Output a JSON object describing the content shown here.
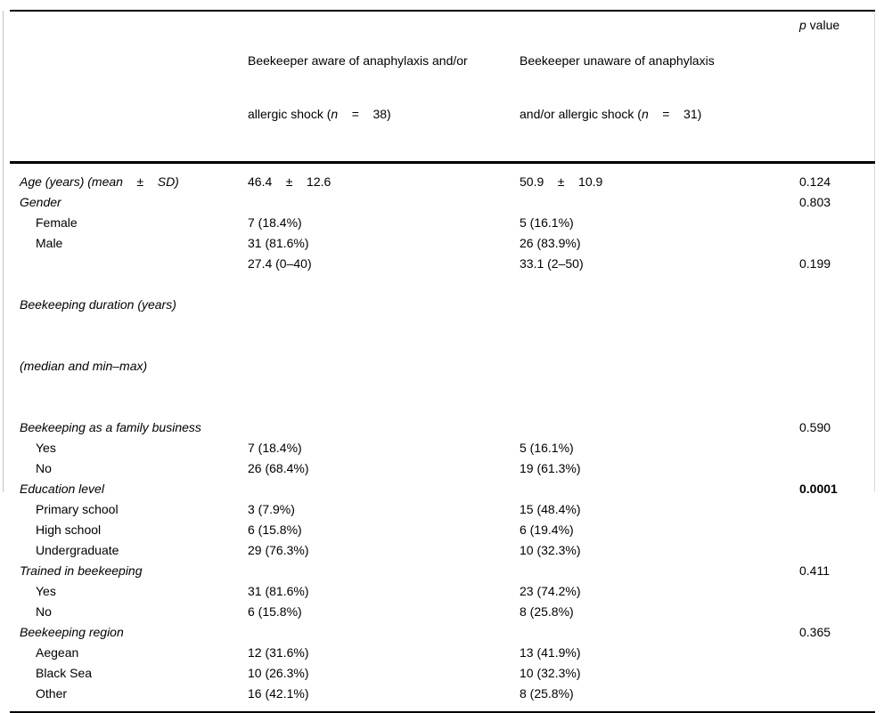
{
  "page": {
    "background": "#ffffff",
    "rule_color": "#000000",
    "frame_color": "#c4c4c4"
  },
  "table": {
    "header": {
      "label_column": "",
      "aware": {
        "line1": "Beekeeper aware of anaphylaxis and/or",
        "line2_pre": "allergic shock (",
        "n": "n",
        "line2_post": "    =    38)"
      },
      "unaware": {
        "line1": "Beekeeper unaware of anaphylaxis",
        "line2_pre": "and/or allergic shock (",
        "n": "n",
        "line2_post": "    =    31)"
      },
      "pvalue": {
        "symbol": "p",
        "rest": " value"
      }
    },
    "rows": [
      {
        "label": "Age (years) (mean    ±    SD)",
        "aware": "46.4    ±    12.6",
        "unaware": "50.9    ±    10.9",
        "p": "0.124"
      },
      {
        "label": "Gender",
        "p": "0.803"
      },
      {
        "label": "Female",
        "aware": "7 (18.4%)",
        "unaware": "5 (16.1%)"
      },
      {
        "label": "Male",
        "aware": "31 (81.6%)",
        "unaware": "26 (83.9%)"
      },
      {
        "label": "Beekeeping duration (years)",
        "label2": "(median and min–max)",
        "aware": "27.4 (0–40)",
        "unaware": "33.1 (2–50)",
        "p": "0.199"
      },
      {
        "label": "Beekeeping as a family business",
        "p": "0.590"
      },
      {
        "label": "Yes",
        "aware": "7 (18.4%)",
        "unaware": "5 (16.1%)"
      },
      {
        "label": "No",
        "aware": "26 (68.4%)",
        "unaware": "19 (61.3%)"
      },
      {
        "label": "Education level",
        "p": "0.0001"
      },
      {
        "label": "Primary school",
        "aware": "3 (7.9%)",
        "unaware": "15 (48.4%)"
      },
      {
        "label": "High school",
        "aware": "6 (15.8%)",
        "unaware": "6 (19.4%)"
      },
      {
        "label": "Undergraduate",
        "aware": "29 (76.3%)",
        "unaware": "10 (32.3%)"
      },
      {
        "label": "Trained in beekeeping",
        "p": "0.411"
      },
      {
        "label": "Yes",
        "aware": "31 (81.6%)",
        "unaware": "23 (74.2%)"
      },
      {
        "label": "No",
        "aware": "6 (15.8%)",
        "unaware": "8 (25.8%)"
      },
      {
        "label": "Beekeeping region",
        "p": "0.365"
      },
      {
        "label": "Aegean",
        "aware": "12 (31.6%)",
        "unaware": "13 (41.9%)"
      },
      {
        "label": "Black Sea",
        "aware": "10 (26.3%)",
        "unaware": "10 (32.3%)"
      },
      {
        "label": "Other",
        "aware": "16 (42.1%)",
        "unaware": "8 (25.8%)"
      }
    ]
  }
}
